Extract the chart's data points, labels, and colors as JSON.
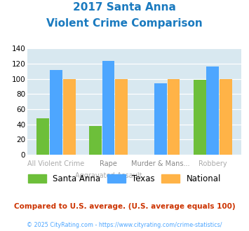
{
  "title_line1": "2017 Santa Anna",
  "title_line2": "Violent Crime Comparison",
  "top_labels": [
    "",
    "Rape",
    "Murder & Mans...",
    ""
  ],
  "bottom_labels": [
    "All Violent Crime",
    "Aggravated Assault",
    "",
    "Robbery"
  ],
  "santa_anna": [
    48,
    38,
    0,
    99
  ],
  "texas": [
    112,
    124,
    94,
    116
  ],
  "national": [
    100,
    100,
    100,
    100
  ],
  "color_santa_anna": "#6dbf3a",
  "color_texas": "#4da6ff",
  "color_national": "#ffb347",
  "ylim": [
    0,
    140
  ],
  "yticks": [
    0,
    20,
    40,
    60,
    80,
    100,
    120,
    140
  ],
  "bg_color": "#d8e8f0",
  "legend_labels": [
    "Santa Anna",
    "Texas",
    "National"
  ],
  "footnote1": "Compared to U.S. average. (U.S. average equals 100)",
  "footnote2": "© 2025 CityRating.com - https://www.cityrating.com/crime-statistics/",
  "title_color": "#1a7abf",
  "footnote1_color": "#cc3300",
  "footnote2_color": "#4da6ff",
  "top_label_color": "#888888",
  "bottom_label_color": "#aaaaaa"
}
